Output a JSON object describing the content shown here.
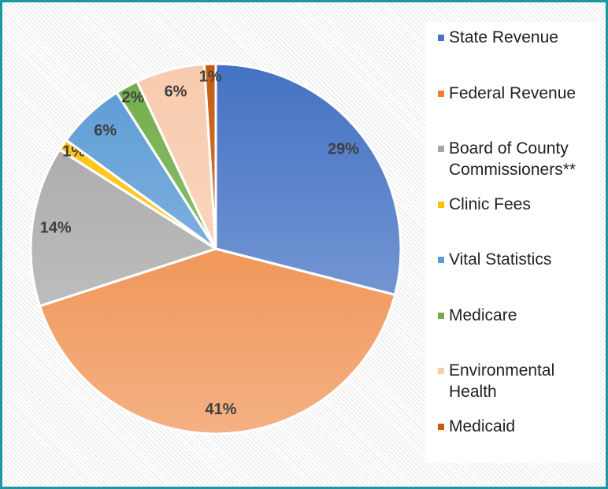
{
  "chart_data": {
    "type": "pie",
    "categories": [
      "State Revenue",
      "Federal Revenue",
      "Board of County Commissioners**",
      "Clinic Fees",
      "Vital Statistics",
      "Medicare",
      "Environmental Health",
      "Medicaid"
    ],
    "values": [
      29,
      41,
      14,
      1,
      6,
      2,
      6,
      1
    ],
    "value_labels": [
      "29%",
      "41%",
      "14%",
      "1%",
      "6%",
      "2%",
      "6%",
      "1%"
    ],
    "colors": [
      "#4472c4",
      "#ed7d31",
      "#a5a5a5",
      "#ffc000",
      "#5b9bd5",
      "#70ad47",
      "#f8cbad",
      "#c55a11"
    ],
    "legend": "right"
  }
}
